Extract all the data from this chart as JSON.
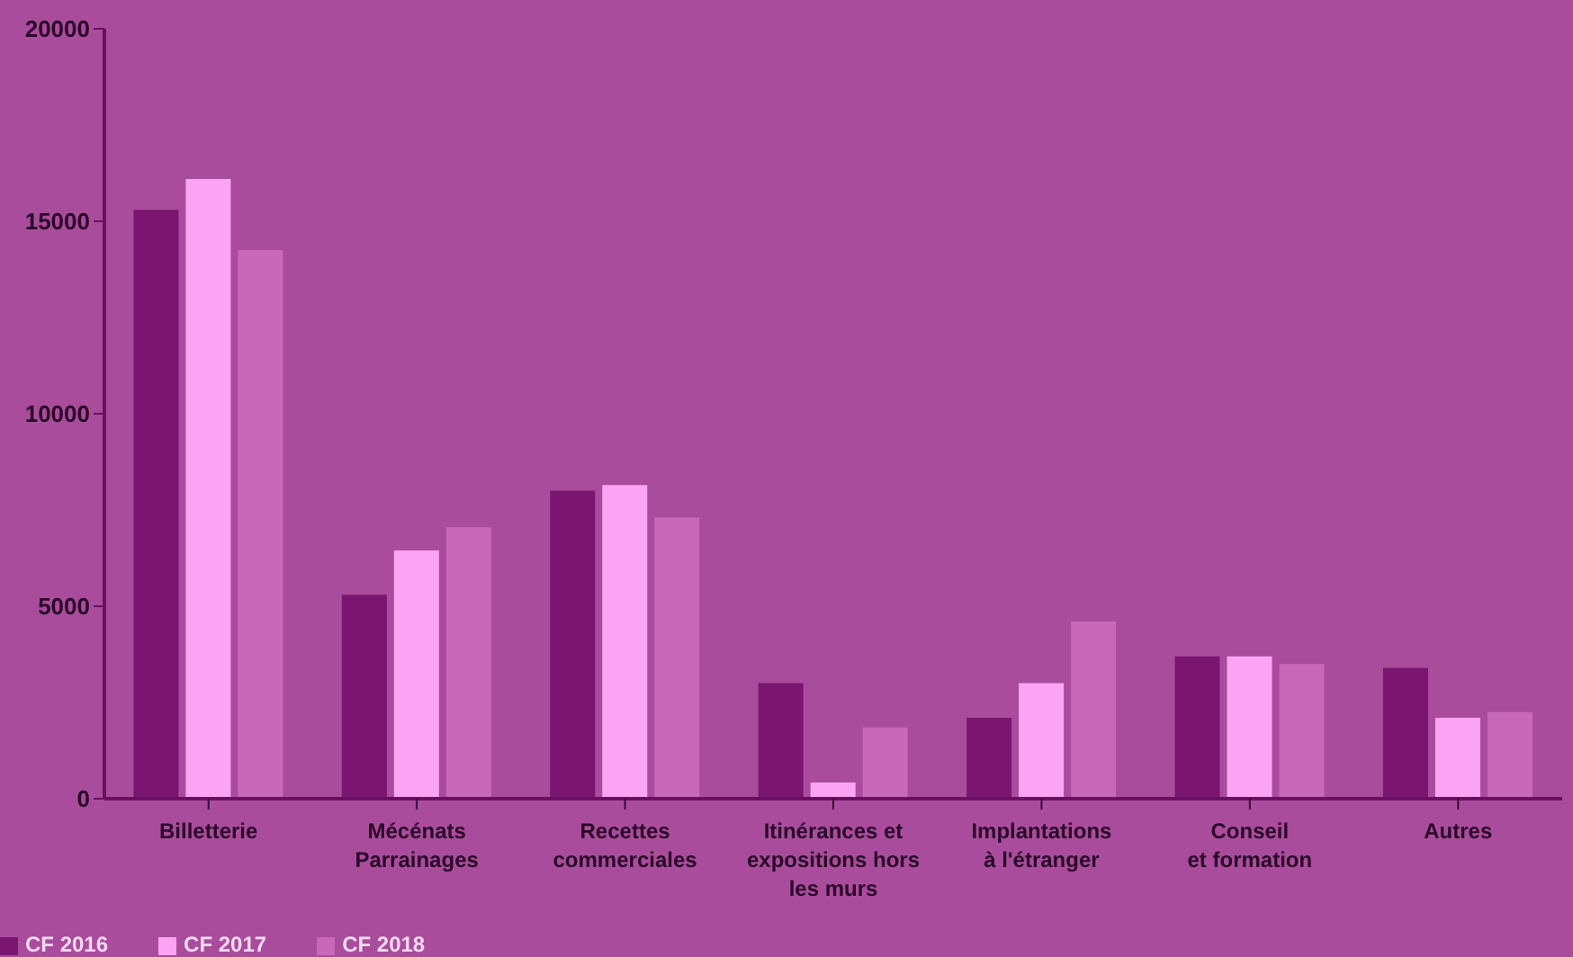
{
  "chart_data": {
    "type": "bar",
    "categories": [
      "Billetterie",
      "Mécénats\nParrainages",
      "Recettes\ncommerciales",
      "Itinérances et\nexpositions hors\nles murs",
      "Implantations\nà l'étranger",
      "Conseil\net formation",
      "Autres"
    ],
    "series": [
      {
        "name": "CF 2016",
        "color": "#7a1570",
        "values": [
          15300,
          5300,
          8000,
          3000,
          2100,
          3700,
          3400
        ]
      },
      {
        "name": "CF 2017",
        "color": "#fca4f4",
        "values": [
          16100,
          6450,
          8150,
          420,
          3000,
          3700,
          2100
        ]
      },
      {
        "name": "CF 2018",
        "color": "#c868b8",
        "values": [
          14250,
          7050,
          7300,
          1850,
          4600,
          3500,
          2250
        ]
      }
    ],
    "ylim": [
      0,
      20000
    ],
    "yticks": [
      0,
      5000,
      10000,
      15000,
      20000
    ],
    "grid": false,
    "legend": "bottom left"
  }
}
